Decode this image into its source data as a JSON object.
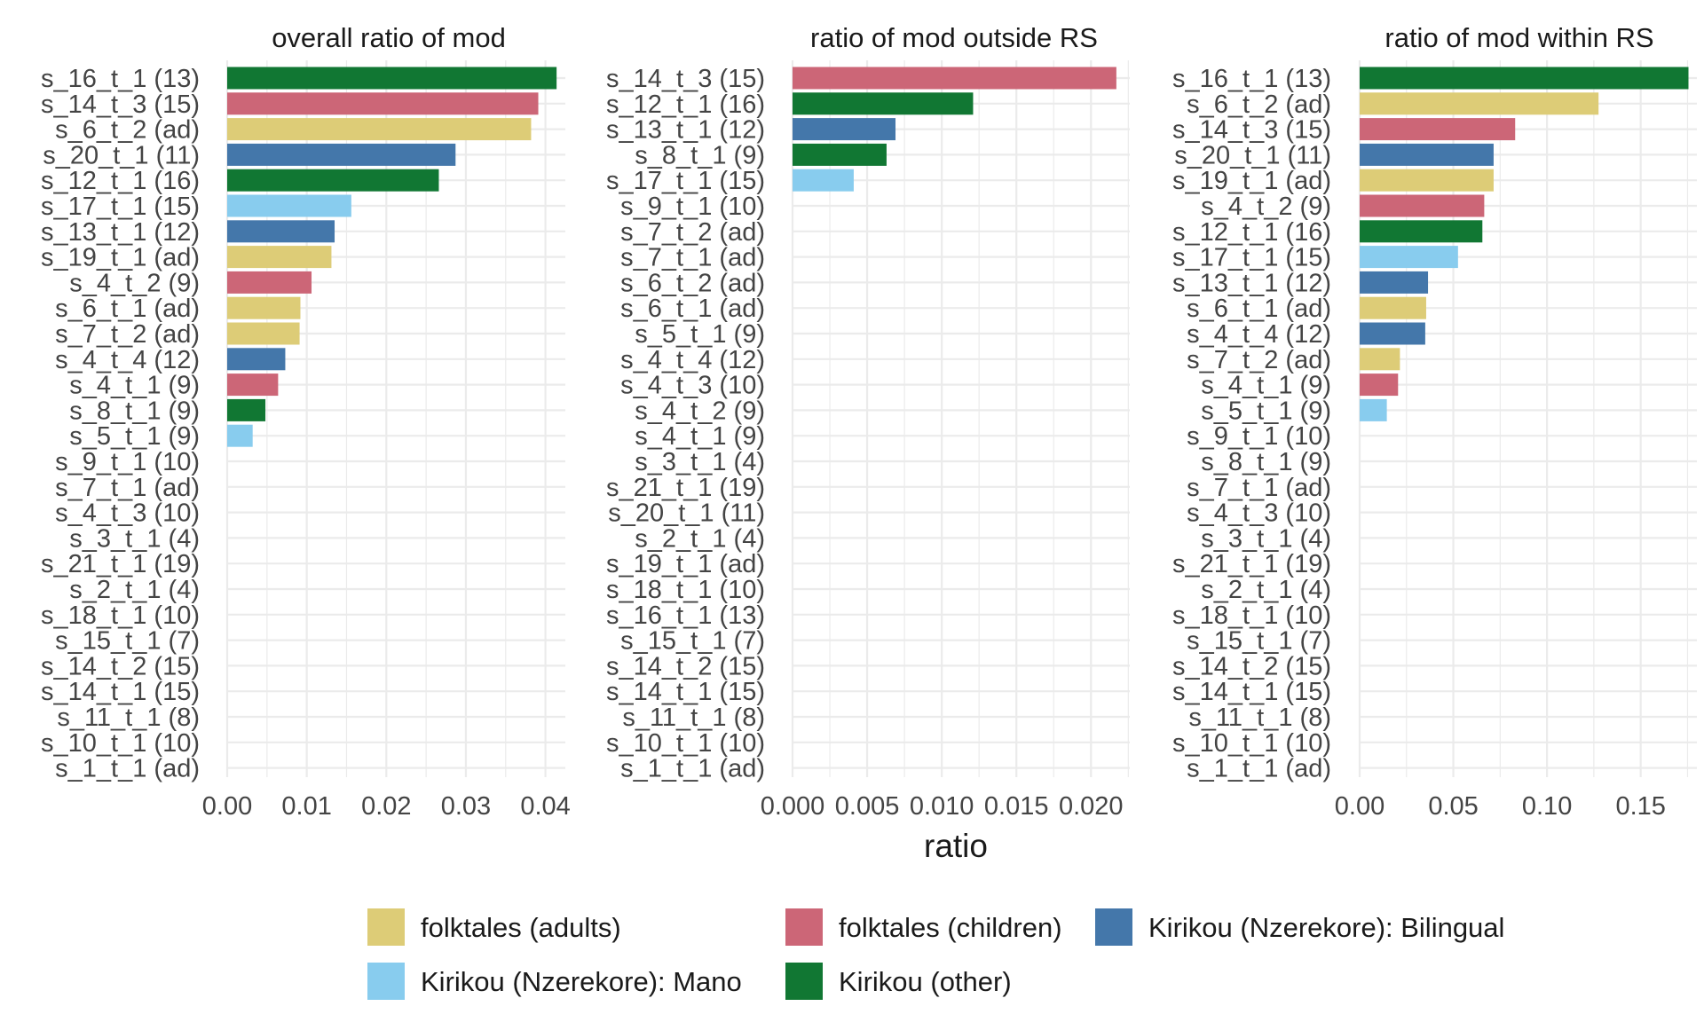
{
  "colors": {
    "folktales (adults)": "#DDCC77",
    "folktales (children)": "#CC6677",
    "Kirikou (Nzerekore): Bilingual": "#4477AA",
    "Kirikou (Nzerekore): Mano": "#88CCEE",
    "Kirikou (other)": "#117733",
    "grid": "#ebebeb"
  },
  "legend": [
    "folktales (adults)",
    "folktales (children)",
    "Kirikou (Nzerekore): Bilingual",
    "Kirikou (Nzerekore): Mano",
    "Kirikou (other)"
  ],
  "chart_data": [
    {
      "type": "bar",
      "orientation": "horizontal",
      "title": "overall ratio of mod",
      "xlabel": "ratio",
      "xlim": [
        0,
        0.0425
      ],
      "xticks": [
        0,
        0.01,
        0.02,
        0.03,
        0.04
      ],
      "xtick_labels": [
        "0.00",
        "0.01",
        "0.02",
        "0.03",
        "0.04"
      ],
      "categories": [
        "s_16_t_1 (13)",
        "s_14_t_3 (15)",
        "s_6_t_2 (ad)",
        "s_20_t_1 (11)",
        "s_12_t_1 (16)",
        "s_17_t_1 (15)",
        "s_13_t_1 (12)",
        "s_19_t_1 (ad)",
        "s_4_t_2 (9)",
        "s_6_t_1 (ad)",
        "s_7_t_2 (ad)",
        "s_4_t_4 (12)",
        "s_4_t_1 (9)",
        "s_8_t_1 (9)",
        "s_5_t_1 (9)",
        "s_9_t_1 (10)",
        "s_7_t_1 (ad)",
        "s_4_t_3 (10)",
        "s_3_t_1 (4)",
        "s_21_t_1 (19)",
        "s_2_t_1 (4)",
        "s_18_t_1 (10)",
        "s_15_t_1 (7)",
        "s_14_t_2 (15)",
        "s_14_t_1 (15)",
        "s_11_t_1 (8)",
        "s_10_t_1 (10)",
        "s_1_t_1 (ad)"
      ],
      "values": [
        0.0414,
        0.0391,
        0.0382,
        0.0287,
        0.0266,
        0.0156,
        0.0135,
        0.0131,
        0.0106,
        0.0092,
        0.0091,
        0.0073,
        0.0064,
        0.0048,
        0.0032,
        0,
        0,
        0,
        0,
        0,
        0,
        0,
        0,
        0,
        0,
        0,
        0,
        0
      ],
      "groups": [
        "Kirikou (other)",
        "folktales (children)",
        "folktales (adults)",
        "Kirikou (Nzerekore): Bilingual",
        "Kirikou (other)",
        "Kirikou (Nzerekore): Mano",
        "Kirikou (Nzerekore): Bilingual",
        "folktales (adults)",
        "folktales (children)",
        "folktales (adults)",
        "folktales (adults)",
        "Kirikou (Nzerekore): Bilingual",
        "folktales (children)",
        "Kirikou (other)",
        "Kirikou (Nzerekore): Mano",
        "",
        "",
        "",
        "",
        "",
        "",
        "",
        "",
        "",
        "",
        "",
        "",
        ""
      ]
    },
    {
      "type": "bar",
      "orientation": "horizontal",
      "title": "ratio of mod outside RS",
      "xlabel": "ratio",
      "xlim": [
        0,
        0.0226
      ],
      "xticks": [
        0,
        0.005,
        0.01,
        0.015,
        0.02
      ],
      "xtick_labels": [
        "0.000",
        "0.005",
        "0.010",
        "0.015",
        "0.020"
      ],
      "categories": [
        "s_14_t_3 (15)",
        "s_12_t_1 (16)",
        "s_13_t_1 (12)",
        "s_8_t_1 (9)",
        "s_17_t_1 (15)",
        "s_9_t_1 (10)",
        "s_7_t_2 (ad)",
        "s_7_t_1 (ad)",
        "s_6_t_2 (ad)",
        "s_6_t_1 (ad)",
        "s_5_t_1 (9)",
        "s_4_t_4 (12)",
        "s_4_t_3 (10)",
        "s_4_t_2 (9)",
        "s_4_t_1 (9)",
        "s_3_t_1 (4)",
        "s_21_t_1 (19)",
        "s_20_t_1 (11)",
        "s_2_t_1 (4)",
        "s_19_t_1 (ad)",
        "s_18_t_1 (10)",
        "s_16_t_1 (13)",
        "s_15_t_1 (7)",
        "s_14_t_2 (15)",
        "s_14_t_1 (15)",
        "s_11_t_1 (8)",
        "s_10_t_1 (10)",
        "s_1_t_1 (ad)"
      ],
      "values": [
        0.0217,
        0.0121,
        0.0069,
        0.0063,
        0.0041,
        0,
        0,
        0,
        0,
        0,
        0,
        0,
        0,
        0,
        0,
        0,
        0,
        0,
        0,
        0,
        0,
        0,
        0,
        0,
        0,
        0,
        0,
        0
      ],
      "groups": [
        "folktales (children)",
        "Kirikou (other)",
        "Kirikou (Nzerekore): Bilingual",
        "Kirikou (other)",
        "Kirikou (Nzerekore): Mano",
        "",
        "",
        "",
        "",
        "",
        "",
        "",
        "",
        "",
        "",
        "",
        "",
        "",
        "",
        "",
        "",
        "",
        "",
        "",
        "",
        "",
        "",
        ""
      ]
    },
    {
      "type": "bar",
      "orientation": "horizontal",
      "title": "ratio of mod within RS",
      "xlabel": "ratio",
      "xlim": [
        0,
        0.18
      ],
      "xticks": [
        0,
        0.05,
        0.1,
        0.15
      ],
      "xtick_labels": [
        "0.00",
        "0.05",
        "0.10",
        "0.15"
      ],
      "categories": [
        "s_16_t_1 (13)",
        "s_6_t_2 (ad)",
        "s_14_t_3 (15)",
        "s_20_t_1 (11)",
        "s_19_t_1 (ad)",
        "s_4_t_2 (9)",
        "s_12_t_1 (16)",
        "s_17_t_1 (15)",
        "s_13_t_1 (12)",
        "s_6_t_1 (ad)",
        "s_4_t_4 (12)",
        "s_7_t_2 (ad)",
        "s_4_t_1 (9)",
        "s_5_t_1 (9)",
        "s_9_t_1 (10)",
        "s_8_t_1 (9)",
        "s_7_t_1 (ad)",
        "s_4_t_3 (10)",
        "s_3_t_1 (4)",
        "s_21_t_1 (19)",
        "s_2_t_1 (4)",
        "s_18_t_1 (10)",
        "s_15_t_1 (7)",
        "s_14_t_2 (15)",
        "s_14_t_1 (15)",
        "s_11_t_1 (8)",
        "s_10_t_1 (10)",
        "s_1_t_1 (ad)"
      ],
      "values": [
        0.1755,
        0.1275,
        0.083,
        0.0715,
        0.0715,
        0.0665,
        0.0655,
        0.0525,
        0.0365,
        0.0355,
        0.035,
        0.0215,
        0.0205,
        0.0145,
        0,
        0,
        0,
        0,
        0,
        0,
        0,
        0,
        0,
        0,
        0,
        0,
        0,
        0
      ],
      "groups": [
        "Kirikou (other)",
        "folktales (adults)",
        "folktales (children)",
        "Kirikou (Nzerekore): Bilingual",
        "folktales (adults)",
        "folktales (children)",
        "Kirikou (other)",
        "Kirikou (Nzerekore): Mano",
        "Kirikou (Nzerekore): Bilingual",
        "folktales (adults)",
        "Kirikou (Nzerekore): Bilingual",
        "folktales (adults)",
        "folktales (children)",
        "Kirikou (Nzerekore): Mano",
        "",
        "",
        "",
        "",
        "",
        "",
        "",
        "",
        "",
        "",
        "",
        "",
        "",
        ""
      ]
    }
  ]
}
